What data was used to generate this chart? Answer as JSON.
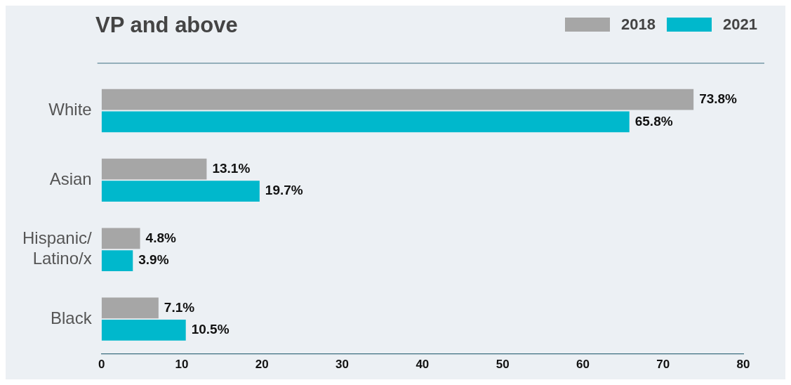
{
  "chart_data": {
    "type": "bar",
    "orientation": "horizontal",
    "title": "VP and above",
    "categories": [
      "White",
      "Asian",
      "Hispanic/\nLatino/x",
      "Black"
    ],
    "series": [
      {
        "name": "2018",
        "color": "#a6a6a6",
        "values": [
          73.8,
          13.1,
          4.8,
          7.1
        ],
        "value_labels": [
          "73.8%",
          "13.1%",
          "4.8%",
          "7.1%"
        ]
      },
      {
        "name": "2021",
        "color": "#00b8cc",
        "values": [
          65.8,
          19.7,
          3.9,
          10.5
        ],
        "value_labels": [
          "65.8%",
          "19.7%",
          "3.9%",
          "10.5%"
        ]
      }
    ],
    "xlim": [
      0,
      80
    ],
    "xticks": [
      0,
      10,
      20,
      30,
      40,
      50,
      60,
      70,
      80
    ],
    "grid": false,
    "legend": "top right"
  }
}
